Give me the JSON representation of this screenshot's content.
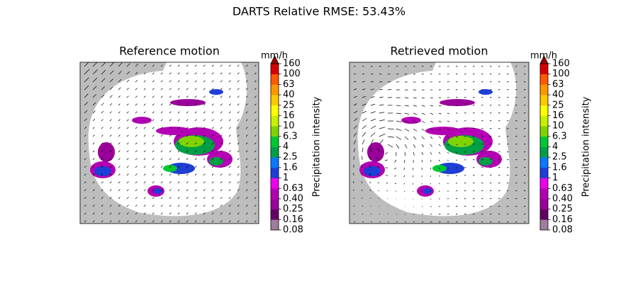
{
  "figure": {
    "title": "DARTS Relative RMSE: 53.43%",
    "panels": [
      {
        "title": "Reference motion",
        "colorbar": {
          "unit": "mm/h",
          "label": "Precipitation intensity",
          "ticks": [
            "0.08",
            "0.16",
            "0.25",
            "0.40",
            "0.63",
            "1",
            "1.6",
            "2.5",
            "4",
            "6.3",
            "10",
            "16",
            "25",
            "40",
            "63",
            "100",
            "160"
          ]
        }
      },
      {
        "title": "Retrieved motion",
        "colorbar": {
          "unit": "mm/h",
          "label": "Precipitation intensity",
          "ticks": [
            "0.08",
            "0.16",
            "0.25",
            "0.40",
            "0.63",
            "1",
            "1.6",
            "2.5",
            "4",
            "6.3",
            "10",
            "16",
            "25",
            "40",
            "63",
            "100",
            "160"
          ]
        }
      }
    ]
  }
}
